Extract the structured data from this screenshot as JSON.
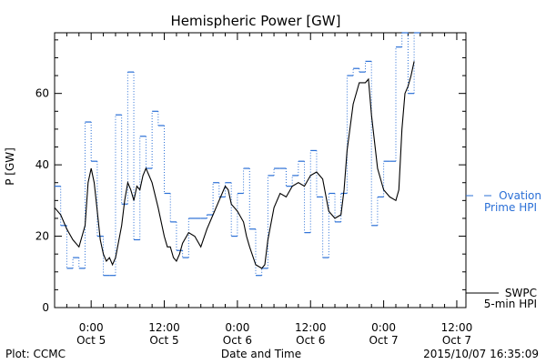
{
  "chart_data": {
    "type": "line",
    "title": "Hemispheric Power [GW]",
    "ylabel": "P [GW]",
    "xlabel": "Date and Time",
    "ylim": [
      0,
      77
    ],
    "xlim_hours_since_2015_10_04_18_00": [
      0,
      67.5
    ],
    "y_ticks": [
      0,
      20,
      40,
      60
    ],
    "x_ticks": [
      {
        "time": "0:00",
        "date": "Oct 5"
      },
      {
        "time": "12:00",
        "date": "Oct 5"
      },
      {
        "time": "0:00",
        "date": "Oct 6"
      },
      {
        "time": "12:00",
        "date": "Oct 6"
      },
      {
        "time": "0:00",
        "date": "Oct 7"
      },
      {
        "time": "12:00",
        "date": "Oct 7"
      }
    ],
    "legend": [
      {
        "label": "Ovation Prime HPI",
        "style": "dotted-blue-dashes",
        "color": "#2a6fd6"
      },
      {
        "label": "SWPC 5-min HPI",
        "style": "solid-black",
        "color": "#000000"
      }
    ],
    "footer": {
      "left": "Plot: CCMC",
      "center": "Date and Time",
      "right": "2015/10/07 16:35:09"
    },
    "series": [
      {
        "name": "SWPC 5-min HPI",
        "points": [
          [
            0,
            28
          ],
          [
            1,
            26
          ],
          [
            2,
            22
          ],
          [
            3,
            19
          ],
          [
            4,
            17
          ],
          [
            5,
            23
          ],
          [
            5.5,
            35
          ],
          [
            6,
            39
          ],
          [
            6.5,
            35
          ],
          [
            7,
            27
          ],
          [
            7.5,
            19
          ],
          [
            8,
            15
          ],
          [
            8.5,
            13
          ],
          [
            9,
            14
          ],
          [
            9.5,
            12
          ],
          [
            10,
            14
          ],
          [
            11,
            23
          ],
          [
            11.5,
            30
          ],
          [
            12,
            35
          ],
          [
            12.5,
            33
          ],
          [
            13,
            30
          ],
          [
            13.5,
            34
          ],
          [
            14,
            33
          ],
          [
            14.5,
            37
          ],
          [
            15,
            39
          ],
          [
            15.5,
            37
          ],
          [
            16,
            35
          ],
          [
            17,
            28
          ],
          [
            18,
            20
          ],
          [
            18.5,
            17
          ],
          [
            19,
            17
          ],
          [
            19.5,
            14
          ],
          [
            20,
            13
          ],
          [
            20.5,
            15
          ],
          [
            21,
            18
          ],
          [
            22,
            21
          ],
          [
            23,
            20
          ],
          [
            24,
            17
          ],
          [
            25,
            22
          ],
          [
            26,
            26
          ],
          [
            27,
            30
          ],
          [
            28,
            34
          ],
          [
            28.5,
            33
          ],
          [
            29,
            29
          ],
          [
            30,
            27
          ],
          [
            31,
            24
          ],
          [
            31.5,
            20
          ],
          [
            32,
            17
          ],
          [
            33,
            12
          ],
          [
            34,
            11
          ],
          [
            34.5,
            12
          ],
          [
            35,
            19
          ],
          [
            36,
            28
          ],
          [
            37,
            32
          ],
          [
            38,
            31
          ],
          [
            39,
            34
          ],
          [
            40,
            35
          ],
          [
            41,
            34
          ],
          [
            42,
            37
          ],
          [
            43,
            38
          ],
          [
            44,
            36
          ],
          [
            45,
            27
          ],
          [
            46,
            25
          ],
          [
            47,
            26
          ],
          [
            47.5,
            33
          ],
          [
            48,
            44
          ],
          [
            49,
            57
          ],
          [
            50,
            63
          ],
          [
            51,
            63
          ],
          [
            51.5,
            64
          ],
          [
            52,
            54
          ],
          [
            53,
            39
          ],
          [
            54,
            33
          ],
          [
            55,
            31
          ],
          [
            56,
            30
          ],
          [
            56.5,
            33
          ],
          [
            57,
            50
          ],
          [
            57.5,
            60
          ],
          [
            58,
            62
          ],
          [
            58.5,
            65
          ],
          [
            59,
            69
          ]
        ]
      },
      {
        "name": "Ovation Prime HPI",
        "steps": [
          [
            0,
            34
          ],
          [
            1,
            23
          ],
          [
            2,
            11
          ],
          [
            3,
            14
          ],
          [
            4,
            11
          ],
          [
            5,
            52
          ],
          [
            6,
            41
          ],
          [
            7,
            20
          ],
          [
            8,
            9
          ],
          [
            9,
            9
          ],
          [
            10,
            54
          ],
          [
            11,
            29
          ],
          [
            12,
            66
          ],
          [
            13,
            19
          ],
          [
            14,
            48
          ],
          [
            15,
            39
          ],
          [
            16,
            55
          ],
          [
            17,
            51
          ],
          [
            18,
            32
          ],
          [
            19,
            24
          ],
          [
            20,
            16
          ],
          [
            21,
            14
          ],
          [
            22,
            25
          ],
          [
            23,
            25
          ],
          [
            24,
            25
          ],
          [
            25,
            26
          ],
          [
            26,
            35
          ],
          [
            27,
            31
          ],
          [
            28,
            35
          ],
          [
            29,
            20
          ],
          [
            30,
            32
          ],
          [
            31,
            39
          ],
          [
            32,
            22
          ],
          [
            33,
            9
          ],
          [
            34,
            11
          ],
          [
            35,
            37
          ],
          [
            36,
            39
          ],
          [
            37,
            39
          ],
          [
            38,
            34
          ],
          [
            39,
            37
          ],
          [
            40,
            41
          ],
          [
            41,
            21
          ],
          [
            42,
            44
          ],
          [
            43,
            31
          ],
          [
            44,
            14
          ],
          [
            45,
            32
          ],
          [
            46,
            24
          ],
          [
            47,
            32
          ],
          [
            48,
            65
          ],
          [
            49,
            67
          ],
          [
            50,
            66
          ],
          [
            51,
            69
          ],
          [
            52,
            23
          ],
          [
            53,
            31
          ],
          [
            54,
            41
          ],
          [
            55,
            41
          ],
          [
            56,
            73
          ],
          [
            57,
            77
          ],
          [
            58,
            60
          ],
          [
            59,
            77
          ]
        ]
      }
    ]
  }
}
